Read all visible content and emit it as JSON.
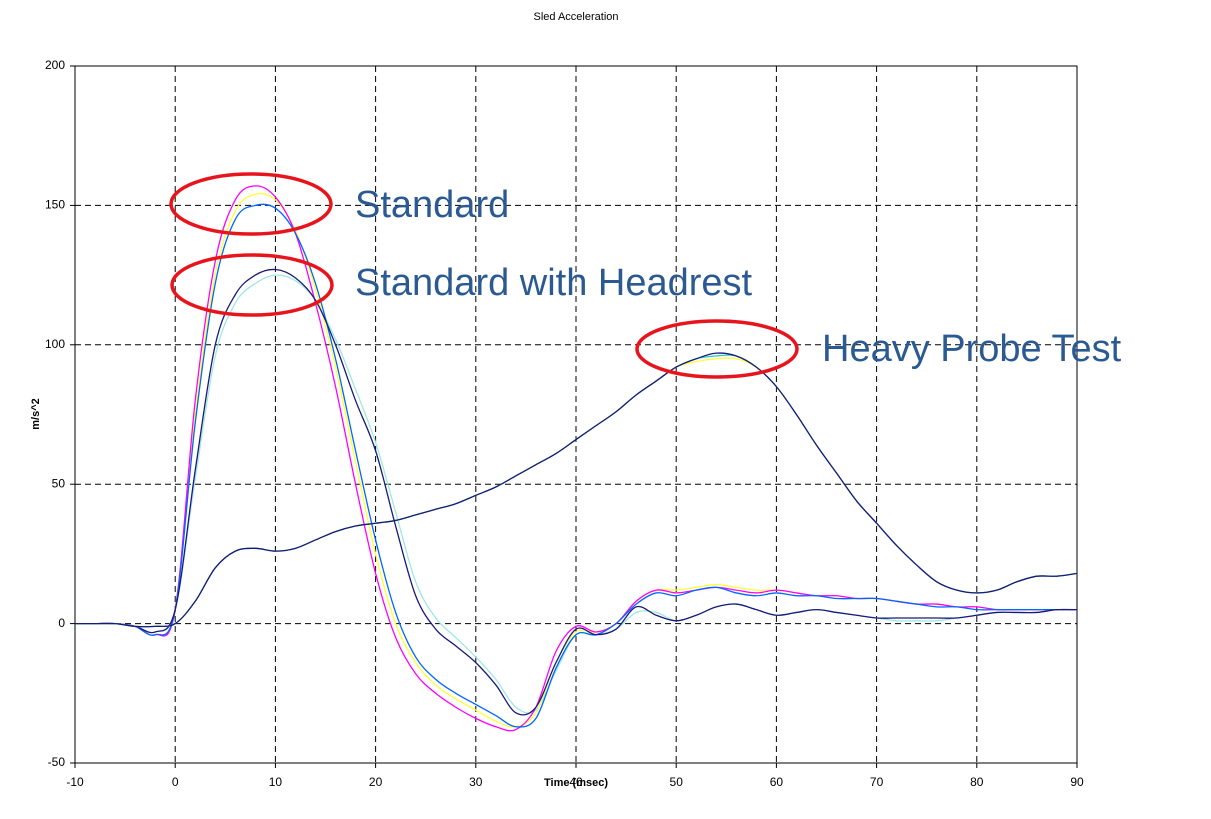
{
  "chart_data": {
    "type": "line",
    "title": "Sled Acceleration",
    "x_label": "Time (msec)",
    "y_label": "m/s^2",
    "annotations": [
      "Standard",
      "Standard with Headrest",
      "Heavy Probe Test"
    ],
    "x": [
      -10,
      -8,
      -6,
      -4,
      -2,
      0,
      2,
      4,
      6,
      8,
      10,
      12,
      14,
      16,
      18,
      20,
      22,
      24,
      26,
      28,
      30,
      32,
      34,
      36,
      38,
      40,
      42,
      44,
      46,
      48,
      50,
      52,
      54,
      56,
      58,
      60,
      62,
      64,
      66,
      68,
      70,
      72,
      74,
      76,
      78,
      80,
      82,
      84,
      86,
      88,
      90
    ],
    "series": [
      {
        "color": "#9fe8e0",
        "values": [
          0,
          0,
          0,
          -1,
          -3,
          5,
          52,
          96,
          115,
          122,
          125,
          123,
          116,
          102,
          84,
          65,
          40,
          15,
          2,
          -5,
          -12,
          -20,
          -30,
          -31,
          -17,
          -4,
          -4,
          -2,
          4,
          4,
          1,
          3,
          6,
          7,
          5,
          3,
          4,
          5,
          4,
          3,
          2,
          1,
          1,
          1,
          2,
          3,
          4,
          4,
          4,
          5,
          5
        ]
      },
      {
        "color": "#ffff33",
        "values": [
          0,
          0,
          0,
          -1,
          -4,
          5,
          75,
          125,
          148,
          154,
          152,
          141,
          120,
          92,
          58,
          25,
          0,
          -14,
          -22,
          -27,
          -31,
          -35,
          -37,
          -32,
          -14,
          -3,
          -3,
          0,
          8,
          12,
          12,
          13,
          14,
          13,
          12,
          12,
          11,
          10,
          10,
          9,
          9,
          8,
          7,
          7,
          6,
          6,
          5,
          5,
          5,
          5,
          5
        ]
      },
      {
        "color": "#ff00ff",
        "values": [
          0,
          0,
          0,
          -1,
          -4,
          5,
          80,
          130,
          152,
          157,
          153,
          140,
          115,
          85,
          50,
          18,
          -5,
          -18,
          -25,
          -30,
          -34,
          -37,
          -38,
          -30,
          -10,
          -1,
          -3,
          0,
          8,
          12,
          11,
          12,
          13,
          12,
          11,
          12,
          11,
          10,
          10,
          9,
          9,
          8,
          7,
          7,
          6,
          6,
          5,
          5,
          5,
          5,
          5
        ]
      },
      {
        "color": "#0066ff",
        "values": [
          0,
          0,
          0,
          -1,
          -4,
          5,
          72,
          122,
          145,
          150,
          149,
          140,
          122,
          95,
          62,
          30,
          4,
          -12,
          -20,
          -25,
          -29,
          -33,
          -37,
          -34,
          -16,
          -4,
          -4,
          0,
          7,
          11,
          10,
          12,
          13,
          11,
          10,
          11,
          10,
          10,
          9,
          9,
          9,
          8,
          7,
          6,
          6,
          5,
          5,
          5,
          5,
          5,
          5
        ]
      },
      {
        "color": "#1a1a7a",
        "values": [
          0,
          0,
          0,
          -1,
          -3,
          5,
          55,
          100,
          118,
          125,
          127,
          124,
          116,
          100,
          80,
          62,
          35,
          10,
          -2,
          -8,
          -14,
          -22,
          -32,
          -30,
          -14,
          -2,
          -4,
          -2,
          6,
          3,
          1,
          3,
          6,
          7,
          5,
          3,
          4,
          5,
          4,
          3,
          2,
          2,
          2,
          2,
          2,
          3,
          4,
          4,
          4,
          5,
          5
        ]
      },
      {
        "color": "#ffff33",
        "values": [
          0,
          0,
          0,
          -1,
          -1,
          0,
          8,
          20,
          26,
          27,
          26,
          27,
          30,
          33,
          35,
          36,
          37,
          39,
          41,
          43,
          46,
          49,
          53,
          57,
          61,
          66,
          71,
          76,
          82,
          87,
          92,
          94,
          95,
          95,
          92,
          85,
          75,
          64,
          54,
          44,
          36,
          28,
          21,
          15,
          12,
          11,
          12,
          15,
          17,
          17,
          18
        ]
      },
      {
        "color": "#33cccc",
        "values": [
          0,
          0,
          0,
          -1,
          -1,
          0,
          8,
          20,
          26,
          27,
          26,
          27,
          30,
          33,
          35,
          36,
          37,
          39,
          41,
          43,
          46,
          49,
          53,
          57,
          61,
          66,
          71,
          76,
          82,
          87,
          92,
          95,
          96,
          96,
          92,
          85,
          75,
          64,
          54,
          44,
          36,
          28,
          21,
          15,
          12,
          11,
          12,
          15,
          17,
          17,
          18
        ]
      },
      {
        "color": "#1a1a7a",
        "values": [
          0,
          0,
          0,
          -1,
          -1,
          0,
          8,
          20,
          26,
          27,
          26,
          27,
          30,
          33,
          35,
          36,
          37,
          39,
          41,
          43,
          46,
          49,
          53,
          57,
          61,
          66,
          71,
          76,
          82,
          87,
          92,
          95,
          97,
          96,
          92,
          85,
          75,
          64,
          54,
          44,
          36,
          28,
          21,
          15,
          12,
          11,
          12,
          15,
          17,
          17,
          18
        ]
      }
    ],
    "xlim": [
      -10,
      90
    ],
    "xticks": [
      -10,
      0,
      10,
      20,
      30,
      40,
      50,
      60,
      70,
      80,
      90
    ],
    "ylim": [
      -50,
      200
    ],
    "yticks": [
      -50,
      0,
      50,
      100,
      150,
      200
    ],
    "grid": true
  }
}
